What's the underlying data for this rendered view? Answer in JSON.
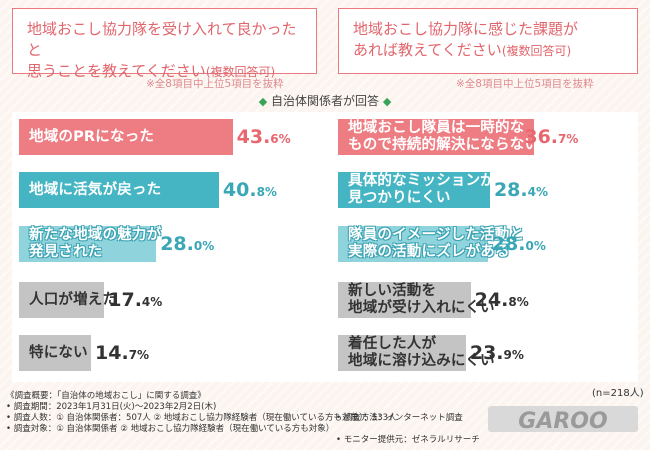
{
  "left_question": {
    "line1": "地域おこし協力隊を受け入れて良かったと",
    "line2": "思うことを教えてください",
    "sub": "(複数回答可)"
  },
  "right_question": {
    "line1": "地域おこし協力隊に感じた課題が",
    "line2": "あれば教えてください",
    "sub": "(複数回答可)"
  },
  "left_note": "※全8項目中上位5項目を抜粋",
  "right_note": "※全8項目中上位5項目を抜粋",
  "respondent": "自治体関係者が回答",
  "respondent_mark": "◆",
  "n_note": "(n=218人)",
  "chart_data": [
    {
      "type": "bar",
      "title": "地域おこし協力隊を受け入れて良かったと思うことを教えてください(複数回答可)",
      "unit": "%",
      "categories": [
        "地域のPRになった",
        "地域に活気が戻った",
        "新たな地域の魅力が発見された",
        "人口が増えた",
        "特にない"
      ],
      "lines": [
        [
          "地域のPRになった"
        ],
        [
          "地域に活気が戻った"
        ],
        [
          "新たな地域の魅力が",
          "発見された"
        ],
        [
          "人口が増えた"
        ],
        [
          "特にない"
        ]
      ],
      "values": [
        43.6,
        40.8,
        28.0,
        17.4,
        14.7
      ],
      "labels": [
        [
          "43.",
          "6%"
        ],
        [
          "40.",
          "8%"
        ],
        [
          "28.",
          "0%"
        ],
        [
          "17.",
          "4%"
        ],
        [
          "14.",
          "7%"
        ]
      ],
      "xlim": [
        0,
        50
      ]
    },
    {
      "type": "bar",
      "title": "地域おこし協力隊に感じた課題があれば教えてください(複数回答可)",
      "unit": "%",
      "categories": [
        "地域おこし隊員は一時的なもので持続的解決にならない",
        "具体的なミッションが見つかりにくい",
        "隊員のイメージした活動と実際の活動にズレがある",
        "新しい活動を地域が受け入れにくい",
        "着任した人が地域に溶け込みにくい"
      ],
      "lines": [
        [
          "地域おこし隊員は一時的な",
          "もので持続的解決にならない"
        ],
        [
          "具体的なミッションが",
          "見つかりにくい"
        ],
        [
          "隊員のイメージした活動と",
          "実際の活動にズレがある"
        ],
        [
          "新しい活動を",
          "地域が受け入れにくい"
        ],
        [
          "着任した人が",
          "地域に溶け込みにくい"
        ]
      ],
      "values": [
        36.7,
        28.4,
        28.0,
        24.8,
        23.9
      ],
      "labels": [
        [
          "36.",
          "7%"
        ],
        [
          "28.",
          "4%"
        ],
        [
          "28.",
          "0%"
        ],
        [
          "24.",
          "8%"
        ],
        [
          "23.",
          "9%"
        ]
      ],
      "xlim": [
        0,
        50
      ]
    }
  ],
  "colors": {
    "top": "#ee7d83",
    "second": "#45b5c4",
    "third": "#8fd4dd",
    "rest": "#c4c4c4",
    "accent": "#e0666c"
  },
  "survey": {
    "heading": "《調査概要：「自治体の地域おこし」に関する調査》",
    "period": "• 調査期間：2023年1月31日(火)〜2023年2月2日(木)",
    "count": "• 調査人数：① 自治体関係者：507人 ② 地域おこし協力隊経験者（現在働いている方も対象）：533人",
    "target": "• 調査対象：① 自治体関係者 ② 地域おこし協力隊経験者（現在働いている方も対象）",
    "method": "• 調査方法：インターネット調査",
    "provider": "• モニター提供元：ゼネラルリサーチ"
  },
  "logo_text": "GAROO"
}
